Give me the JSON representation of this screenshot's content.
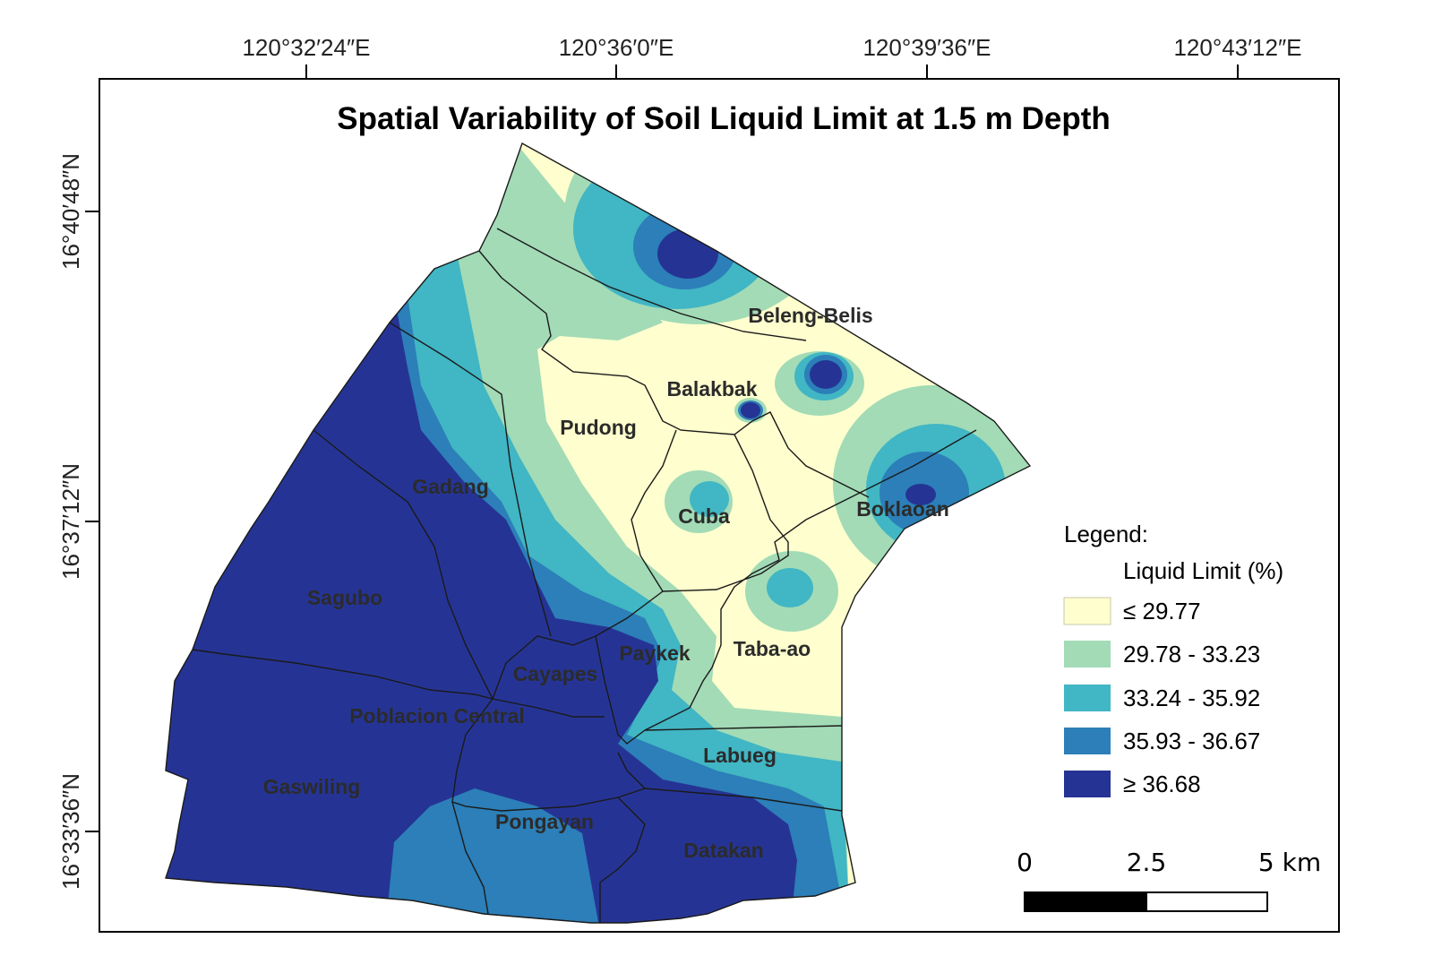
{
  "map": {
    "title": "Spatial Variability of Soil Liquid Limit at 1.5 m Depth",
    "longitude_labels": [
      "120°32′24″E",
      "120°36′0″E",
      "120°39′36″E",
      "120°43′12″E"
    ],
    "latitude_labels": [
      "16°40′48″N",
      "16°37′12″N",
      "16°33′36″N"
    ],
    "barangays": [
      "Beleng-Belis",
      "Balakbak",
      "Pudong",
      "Gadang",
      "Cuba",
      "Boklaoan",
      "Sagubo",
      "Taba-ao",
      "Paykek",
      "Cayapes",
      "Poblacion Central",
      "Labueg",
      "Gaswiling",
      "Pongayan",
      "Datakan"
    ]
  },
  "legend": {
    "heading": "Legend:",
    "subheading": "Liquid Limit (%)",
    "classes": [
      {
        "label": "≤ 29.77",
        "color": "#fefece"
      },
      {
        "label": "29.78 - 33.23",
        "color": "#a2dbb6"
      },
      {
        "label": "33.24 - 35.92",
        "color": "#41b6c4"
      },
      {
        "label": "35.93 - 36.67",
        "color": "#2c7fb8"
      },
      {
        "label": "≥ 36.68",
        "color": "#253494"
      }
    ]
  },
  "scale_bar": {
    "labels": [
      "0",
      "2.5",
      "5 km"
    ]
  }
}
